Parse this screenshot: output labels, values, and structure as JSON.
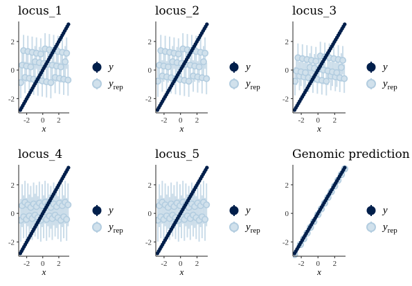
{
  "colors": {
    "y": "#011f4b",
    "yrep_fill": "#d1e1ec",
    "yrep_stroke": "#b3cde0",
    "yrep_interval": "#b3cde0"
  },
  "chart_data": [
    {
      "type": "scatter",
      "title": "locus_1",
      "xlabel": "x",
      "ylabel": "",
      "xlim": [
        -3,
        3.3
      ],
      "ylim": [
        -3,
        3.4
      ],
      "xticks": [
        "-2",
        "0",
        "2"
      ],
      "yticks": [
        "-2",
        "0",
        "2"
      ],
      "legend": [
        "y",
        "y_rep"
      ],
      "legend_position": "right",
      "yrep_levels": [
        -0.7,
        0.4,
        1.3
      ],
      "interval_half_width": 1.1,
      "series": [
        {
          "name": "y",
          "x": [
            -2.8,
            -2.1,
            -1.7,
            -1.3,
            -0.9,
            -0.5,
            0,
            0.4,
            0.8,
            1.2,
            1.6,
            2,
            2.4,
            2.8,
            3.2
          ],
          "y": [
            -2.8,
            -2.1,
            -1.7,
            -1.3,
            -0.9,
            -0.5,
            0,
            0.4,
            0.8,
            1.2,
            1.6,
            2,
            2.4,
            2.8,
            3.2
          ]
        }
      ]
    },
    {
      "type": "scatter",
      "title": "locus_2",
      "xlabel": "x",
      "ylabel": "",
      "xlim": [
        -3,
        3.3
      ],
      "ylim": [
        -3,
        3.4
      ],
      "xticks": [
        "-2",
        "0",
        "2"
      ],
      "yticks": [
        "-2",
        "0",
        "2"
      ],
      "legend": [
        "y",
        "y_rep"
      ],
      "legend_position": "right",
      "yrep_levels": [
        -0.6,
        0.4,
        1.3
      ],
      "interval_half_width": 1.1,
      "series": [
        {
          "name": "y",
          "x": [
            -2.8,
            -2.1,
            -1.7,
            -1.3,
            -0.9,
            -0.5,
            0,
            0.4,
            0.8,
            1.2,
            1.6,
            2,
            2.4,
            2.8,
            3.2
          ],
          "y": [
            -2.8,
            -2.1,
            -1.7,
            -1.3,
            -0.9,
            -0.5,
            0,
            0.4,
            0.8,
            1.2,
            1.6,
            2,
            2.4,
            2.8,
            3.2
          ]
        }
      ]
    },
    {
      "type": "scatter",
      "title": "locus_3",
      "xlabel": "x",
      "ylabel": "",
      "xlim": [
        -3,
        3.3
      ],
      "ylim": [
        -3,
        3.4
      ],
      "xticks": [
        "-2",
        "0",
        "2"
      ],
      "yticks": [
        "-2",
        "0",
        "2"
      ],
      "legend": [
        "y",
        "y_rep"
      ],
      "legend_position": "right",
      "yrep_levels": [
        -0.6,
        0,
        0.8
      ],
      "interval_half_width": 1.0,
      "series": [
        {
          "name": "y",
          "x": [
            -2.8,
            -2.1,
            -1.7,
            -1.3,
            -0.9,
            -0.5,
            0,
            0.4,
            0.8,
            1.2,
            1.6,
            2,
            2.4,
            2.8,
            3.2
          ],
          "y": [
            -2.8,
            -2.1,
            -1.7,
            -1.3,
            -0.9,
            -0.5,
            0,
            0.4,
            0.8,
            1.2,
            1.6,
            2,
            2.4,
            2.8,
            3.2
          ]
        }
      ]
    },
    {
      "type": "scatter",
      "title": "locus_4",
      "xlabel": "x",
      "ylabel": "",
      "xlim": [
        -3,
        3.3
      ],
      "ylim": [
        -3,
        3.4
      ],
      "xticks": [
        "-2",
        "0",
        "2"
      ],
      "yticks": [
        "-2",
        "0",
        "2"
      ],
      "legend": [
        "y",
        "y_rep"
      ],
      "legend_position": "right",
      "yrep_levels": [
        -0.3,
        0.6
      ],
      "interval_half_width": 1.5,
      "series": [
        {
          "name": "y",
          "x": [
            -2.8,
            -2.1,
            -1.7,
            -1.3,
            -0.9,
            -0.5,
            0,
            0.4,
            0.8,
            1.2,
            1.6,
            2,
            2.4,
            2.8,
            3.2
          ],
          "y": [
            -2.8,
            -2.1,
            -1.7,
            -1.3,
            -0.9,
            -0.5,
            0,
            0.4,
            0.8,
            1.2,
            1.6,
            2,
            2.4,
            2.8,
            3.2
          ]
        }
      ]
    },
    {
      "type": "scatter",
      "title": "locus_5",
      "xlabel": "x",
      "ylabel": "",
      "xlim": [
        -3,
        3.3
      ],
      "ylim": [
        -3,
        3.4
      ],
      "xticks": [
        "-2",
        "0",
        "2"
      ],
      "yticks": [
        "-2",
        "0",
        "2"
      ],
      "legend": [
        "y",
        "y_rep"
      ],
      "legend_position": "right",
      "yrep_levels": [
        -0.3,
        0.6
      ],
      "interval_half_width": 1.5,
      "series": [
        {
          "name": "y",
          "x": [
            -2.8,
            -2.1,
            -1.7,
            -1.3,
            -0.9,
            -0.5,
            0,
            0.4,
            0.8,
            1.2,
            1.6,
            2,
            2.4,
            2.8,
            3.2
          ],
          "y": [
            -2.8,
            -2.1,
            -1.7,
            -1.3,
            -0.9,
            -0.5,
            0,
            0.4,
            0.8,
            1.2,
            1.6,
            2,
            2.4,
            2.8,
            3.2
          ]
        }
      ]
    },
    {
      "type": "scatter",
      "title": "Genomic prediction",
      "xlabel": "x",
      "ylabel": "",
      "xlim": [
        -3,
        3.3
      ],
      "ylim": [
        -3,
        3.4
      ],
      "xticks": [
        "-2",
        "0",
        "2"
      ],
      "yticks": [
        "-2",
        "0",
        "2"
      ],
      "legend": [
        "y",
        "y_rep"
      ],
      "legend_position": "right",
      "yrep_levels": [],
      "interval_half_width": 0.15,
      "series": [
        {
          "name": "y",
          "x": [
            -2.8,
            -2.1,
            -1.7,
            -1.3,
            -0.9,
            -0.5,
            0,
            0.4,
            0.8,
            1.2,
            1.6,
            2,
            2.4,
            2.8,
            3.2
          ],
          "y": [
            -2.8,
            -2.1,
            -1.7,
            -1.3,
            -0.9,
            -0.5,
            0,
            0.4,
            0.8,
            1.2,
            1.6,
            2,
            2.4,
            2.8,
            3.2
          ]
        }
      ]
    }
  ]
}
